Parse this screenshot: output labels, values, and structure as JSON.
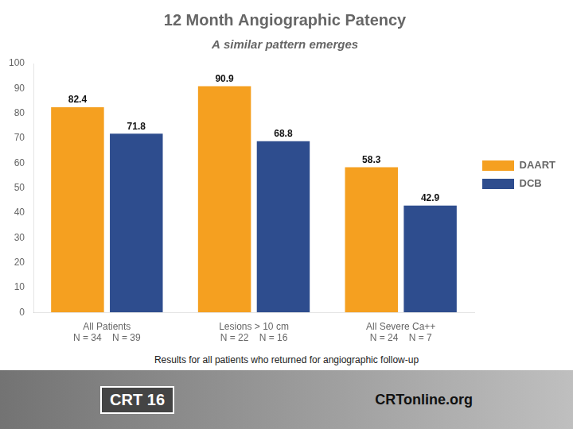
{
  "chart_data": {
    "type": "bar",
    "title": "12 Month Angiographic Patency",
    "subtitle": "A similar pattern emerges",
    "categories": [
      "All Patients",
      "Lesions > 10 cm",
      "All Severe Ca++"
    ],
    "series": [
      {
        "name": "DAART",
        "color": "#f5a020",
        "values": [
          82.4,
          90.9,
          58.3
        ]
      },
      {
        "name": "DCB",
        "color": "#2e4d8e",
        "values": [
          71.8,
          68.8,
          42.9
        ]
      }
    ],
    "ylim": [
      0,
      100
    ],
    "yticks": [
      0,
      10,
      20,
      30,
      40,
      50,
      60,
      70,
      80,
      90,
      100
    ],
    "grid": false,
    "legend": "right",
    "data_labels": true,
    "annotations": [
      {
        "text": "N = 34    N = 39",
        "category": "All Patients"
      },
      {
        "text": "N = 22    N = 16",
        "category": "Lesions > 10 cm"
      },
      {
        "text": "N = 24    N = 7",
        "category": "All Severe Ca++"
      },
      {
        "text": "Results for all patients who returned for angiographic follow-up"
      },
      {
        "text": "CRT 16"
      },
      {
        "text": "CRTonline.org"
      }
    ]
  }
}
